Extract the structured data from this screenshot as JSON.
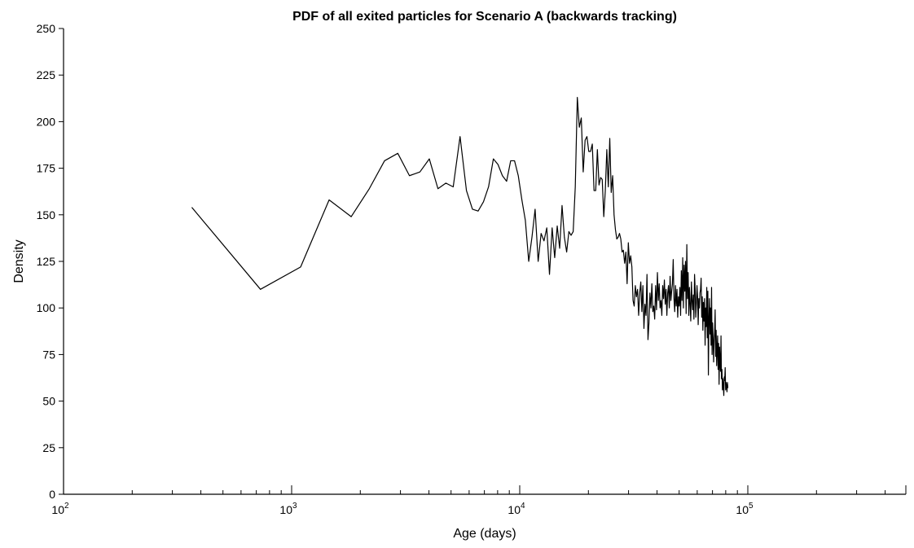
{
  "chart_data": {
    "type": "line",
    "title": "PDF of all exited particles for Scenario A (backwards tracking)",
    "xlabel": "Age (days)",
    "ylabel": "Density",
    "xscale": "log",
    "xlim": [
      100,
      500000
    ],
    "ylim": [
      0,
      250
    ],
    "grid": false,
    "legend": "none",
    "line_color": "#000000",
    "x_ticks": [
      {
        "base": "10",
        "exp": "2",
        "value": 100
      },
      {
        "base": "10",
        "exp": "3",
        "value": 1000
      },
      {
        "base": "10",
        "exp": "4",
        "value": 10000
      },
      {
        "base": "10",
        "exp": "5",
        "value": 100000
      }
    ],
    "y_ticks": [
      0,
      25,
      50,
      75,
      100,
      125,
      150,
      175,
      200,
      225,
      250
    ],
    "series": [
      {
        "points": [
          [
            365,
            154
          ],
          [
            730,
            110
          ],
          [
            1095,
            122
          ],
          [
            1460,
            158
          ],
          [
            1825,
            149
          ],
          [
            2190,
            164
          ],
          [
            2555,
            179
          ],
          [
            2920,
            183
          ],
          [
            3285,
            171
          ],
          [
            3650,
            173
          ],
          [
            4015,
            180
          ],
          [
            4380,
            164
          ],
          [
            4745,
            167
          ],
          [
            5110,
            165
          ],
          [
            5475,
            192
          ],
          [
            5840,
            163
          ],
          [
            6205,
            153
          ],
          [
            6570,
            152
          ],
          [
            6935,
            157
          ],
          [
            7300,
            165
          ],
          [
            7665,
            180
          ],
          [
            8030,
            177
          ],
          [
            8395,
            171
          ],
          [
            8760,
            168
          ],
          [
            9125,
            179
          ],
          [
            9490,
            179
          ],
          [
            9855,
            171
          ],
          [
            10220,
            158
          ],
          [
            10585,
            147
          ],
          [
            10950,
            125
          ],
          [
            11315,
            138
          ],
          [
            11680,
            153
          ],
          [
            12045,
            125
          ],
          [
            12410,
            140
          ],
          [
            12775,
            136
          ],
          [
            13140,
            143
          ],
          [
            13505,
            118
          ],
          [
            13870,
            143
          ],
          [
            14235,
            127
          ],
          [
            14600,
            144
          ],
          [
            14965,
            132
          ],
          [
            15330,
            155
          ],
          [
            15695,
            138
          ],
          [
            16060,
            130
          ],
          [
            16425,
            141
          ],
          [
            16790,
            139
          ],
          [
            17155,
            141
          ],
          [
            17520,
            165
          ],
          [
            17885,
            213
          ],
          [
            18250,
            197
          ],
          [
            18615,
            202
          ],
          [
            18980,
            173
          ],
          [
            19345,
            190
          ],
          [
            19710,
            192
          ],
          [
            20075,
            184
          ],
          [
            20440,
            184
          ],
          [
            20805,
            188
          ],
          [
            21170,
            163
          ],
          [
            21535,
            163
          ],
          [
            21900,
            185
          ],
          [
            22265,
            166
          ],
          [
            22630,
            170
          ],
          [
            22995,
            169
          ],
          [
            23360,
            149
          ],
          [
            23725,
            163
          ],
          [
            24090,
            185
          ],
          [
            24455,
            165
          ],
          [
            24820,
            191
          ],
          [
            25185,
            162
          ],
          [
            25550,
            171
          ],
          [
            25915,
            150
          ],
          [
            26280,
            142
          ],
          [
            26645,
            137
          ],
          [
            27010,
            138
          ],
          [
            27375,
            140
          ],
          [
            27740,
            137
          ],
          [
            28105,
            130
          ],
          [
            28470,
            131
          ],
          [
            28835,
            124
          ],
          [
            29200,
            130
          ],
          [
            29565,
            113
          ],
          [
            29930,
            135
          ],
          [
            30295,
            124
          ],
          [
            30660,
            128
          ],
          [
            31025,
            122
          ],
          [
            31390,
            104
          ],
          [
            31755,
            101
          ],
          [
            32120,
            112
          ],
          [
            32485,
            106
          ],
          [
            32850,
            110
          ],
          [
            33215,
            96
          ],
          [
            33580,
            108
          ],
          [
            33945,
            114
          ],
          [
            34310,
            98
          ],
          [
            34675,
            112
          ],
          [
            35040,
            89
          ],
          [
            35405,
            102
          ],
          [
            35770,
            96
          ],
          [
            36135,
            118
          ],
          [
            36500,
            83
          ],
          [
            36865,
            92
          ],
          [
            37230,
            108
          ],
          [
            37595,
            100
          ],
          [
            37960,
            113
          ],
          [
            38325,
            98
          ],
          [
            38690,
            101
          ],
          [
            39055,
            94
          ],
          [
            39420,
            112
          ],
          [
            39785,
            99
          ],
          [
            40150,
            119
          ],
          [
            40515,
            104
          ],
          [
            40880,
            113
          ],
          [
            41245,
            100
          ],
          [
            41610,
            104
          ],
          [
            41975,
            96
          ],
          [
            42340,
            112
          ],
          [
            42705,
            105
          ],
          [
            43070,
            115
          ],
          [
            43435,
            102
          ],
          [
            43800,
            110
          ],
          [
            44165,
            96
          ],
          [
            44530,
            108
          ],
          [
            44895,
            112
          ],
          [
            45260,
            100
          ],
          [
            45625,
            117
          ],
          [
            45990,
            104
          ],
          [
            46355,
            109
          ],
          [
            46720,
            113
          ],
          [
            47085,
            126
          ],
          [
            47450,
            105
          ],
          [
            47815,
            98
          ],
          [
            48180,
            112
          ],
          [
            48545,
            101
          ],
          [
            48910,
            110
          ],
          [
            49275,
            95
          ],
          [
            49640,
            106
          ],
          [
            50005,
            101
          ],
          [
            50370,
            111
          ],
          [
            50735,
            96
          ],
          [
            51100,
            120
          ],
          [
            51465,
            104
          ],
          [
            51830,
            127
          ],
          [
            52195,
            100
          ],
          [
            52560,
            123
          ],
          [
            52925,
            109
          ],
          [
            53290,
            125
          ],
          [
            53655,
            97
          ],
          [
            54020,
            134
          ],
          [
            54385,
            105
          ],
          [
            54750,
            119
          ],
          [
            55115,
            96
          ],
          [
            55480,
            111
          ],
          [
            55845,
            102
          ],
          [
            56210,
            93
          ],
          [
            56575,
            114
          ],
          [
            56940,
            104
          ],
          [
            57305,
            99
          ],
          [
            57670,
            107
          ],
          [
            58035,
            94
          ],
          [
            58400,
            118
          ],
          [
            58765,
            110
          ],
          [
            59130,
            95
          ],
          [
            59495,
            102
          ],
          [
            59860,
            112
          ],
          [
            60225,
            106
          ],
          [
            60590,
            91
          ],
          [
            60955,
            105
          ],
          [
            61320,
            100
          ],
          [
            61685,
            108
          ],
          [
            62050,
            110
          ],
          [
            62415,
            116
          ],
          [
            62780,
            95
          ],
          [
            63145,
            106
          ],
          [
            63510,
            88
          ],
          [
            63875,
            103
          ],
          [
            64240,
            93
          ],
          [
            64605,
            105
          ],
          [
            64970,
            80
          ],
          [
            65335,
            100
          ],
          [
            65700,
            90
          ],
          [
            66065,
            111
          ],
          [
            66430,
            84
          ],
          [
            66795,
            109
          ],
          [
            67160,
            64
          ],
          [
            67525,
            94
          ],
          [
            67890,
            105
          ],
          [
            68255,
            86
          ],
          [
            68620,
            100
          ],
          [
            68985,
            80
          ],
          [
            69350,
            111
          ],
          [
            69715,
            75
          ],
          [
            70080,
            92
          ],
          [
            70445,
            84
          ],
          [
            70810,
            71
          ],
          [
            71175,
            82
          ],
          [
            71540,
            87
          ],
          [
            71905,
            99
          ],
          [
            72270,
            74
          ],
          [
            72635,
            88
          ],
          [
            73000,
            69
          ],
          [
            73365,
            78
          ],
          [
            73730,
            85
          ],
          [
            74095,
            67
          ],
          [
            74460,
            81
          ],
          [
            74825,
            59
          ],
          [
            75190,
            79
          ],
          [
            75555,
            70
          ],
          [
            75920,
            66
          ],
          [
            76285,
            85
          ],
          [
            76650,
            62
          ],
          [
            77015,
            67
          ],
          [
            77380,
            56
          ],
          [
            77745,
            62
          ],
          [
            78110,
            58
          ],
          [
            78475,
            53
          ],
          [
            78840,
            63
          ],
          [
            79205,
            61
          ],
          [
            79570,
            68
          ],
          [
            79935,
            56
          ],
          [
            80300,
            60
          ],
          [
            80665,
            58
          ],
          [
            81030,
            55
          ],
          [
            81395,
            60
          ],
          [
            81760,
            57
          ]
        ]
      }
    ]
  }
}
